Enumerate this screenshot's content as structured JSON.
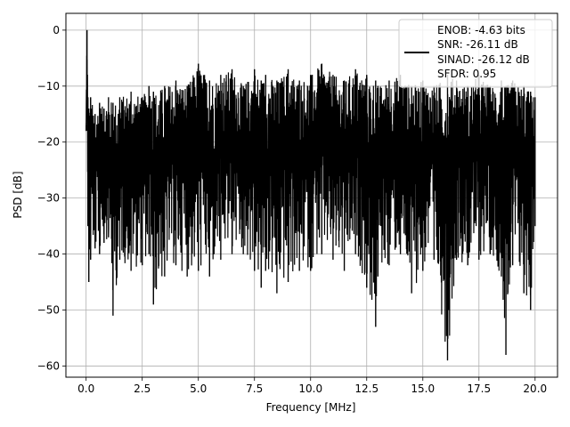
{
  "chart_data": {
    "type": "line",
    "xlabel": "Frequency [MHz]",
    "ylabel": "PSD [dB]",
    "xlim": [
      -0.9,
      21.0
    ],
    "ylim": [
      -62,
      3
    ],
    "xticks": [
      0.0,
      2.5,
      5.0,
      7.5,
      10.0,
      12.5,
      15.0,
      17.5,
      20.0
    ],
    "xtick_labels": [
      "0.0",
      "2.5",
      "5.0",
      "7.5",
      "10.0",
      "12.5",
      "15.0",
      "17.5",
      "20.0"
    ],
    "yticks": [
      0,
      -10,
      -20,
      -30,
      -40,
      -50,
      -60
    ],
    "ytick_labels": [
      "0",
      "−10",
      "−20",
      "−30",
      "−40",
      "−50",
      "−60"
    ],
    "grid": true,
    "legend_position": "top-right",
    "legend_lines": [
      "ENOB: -4.63 bits",
      "SNR: -26.11 dB",
      "SINAD: -26.12 dB",
      "SFDR: 0.95"
    ],
    "line_color": "#000000",
    "series": [
      {
        "values": {
          "x": [
            0.0,
            0.04,
            0.08,
            0.12,
            0.2,
            0.4,
            0.6,
            0.8,
            1.0,
            1.2,
            1.5,
            2.0,
            2.5,
            2.8,
            3.0,
            3.5,
            4.0,
            4.5,
            5.0,
            5.5,
            6.0,
            6.5,
            7.0,
            7.5,
            7.8,
            8.0,
            8.5,
            9.0,
            9.5,
            10.0,
            10.5,
            11.0,
            11.5,
            12.0,
            12.5,
            12.9,
            13.0,
            13.5,
            14.0,
            14.5,
            15.0,
            15.5,
            16.1,
            16.5,
            17.0,
            17.5,
            18.0,
            18.5,
            18.7,
            19.0,
            19.5,
            19.8,
            20.0
          ],
          "y_max": [
            -17,
            0,
            -12,
            -14,
            -12,
            -15,
            -13,
            -14,
            -12,
            -13,
            -12,
            -11,
            -12,
            -10,
            -11,
            -10,
            -9,
            -10,
            -6,
            -9,
            -8,
            -7,
            -10,
            -7,
            -9,
            -8,
            -9,
            -7,
            -9,
            -8,
            -6,
            -8,
            -9,
            -7,
            -8,
            -9,
            -10,
            -9,
            -8,
            -10,
            -9,
            -10,
            -8,
            -9,
            -10,
            -8,
            -10,
            -9,
            -10,
            -9,
            -10,
            -11,
            -12
          ],
          "y_min": [
            -18,
            -12,
            -35,
            -45,
            -41,
            -39,
            -40,
            -38,
            -37,
            -51,
            -41,
            -43,
            -42,
            -40,
            -49,
            -44,
            -42,
            -44,
            -43,
            -44,
            -41,
            -40,
            -40,
            -43,
            -46,
            -43,
            -47,
            -45,
            -43,
            -43,
            -40,
            -41,
            -43,
            -40,
            -46,
            -53,
            -44,
            -42,
            -40,
            -47,
            -43,
            -41,
            -59,
            -41,
            -42,
            -41,
            -40,
            -44,
            -58,
            -42,
            -47,
            -50,
            -35
          ]
        }
      }
    ]
  }
}
